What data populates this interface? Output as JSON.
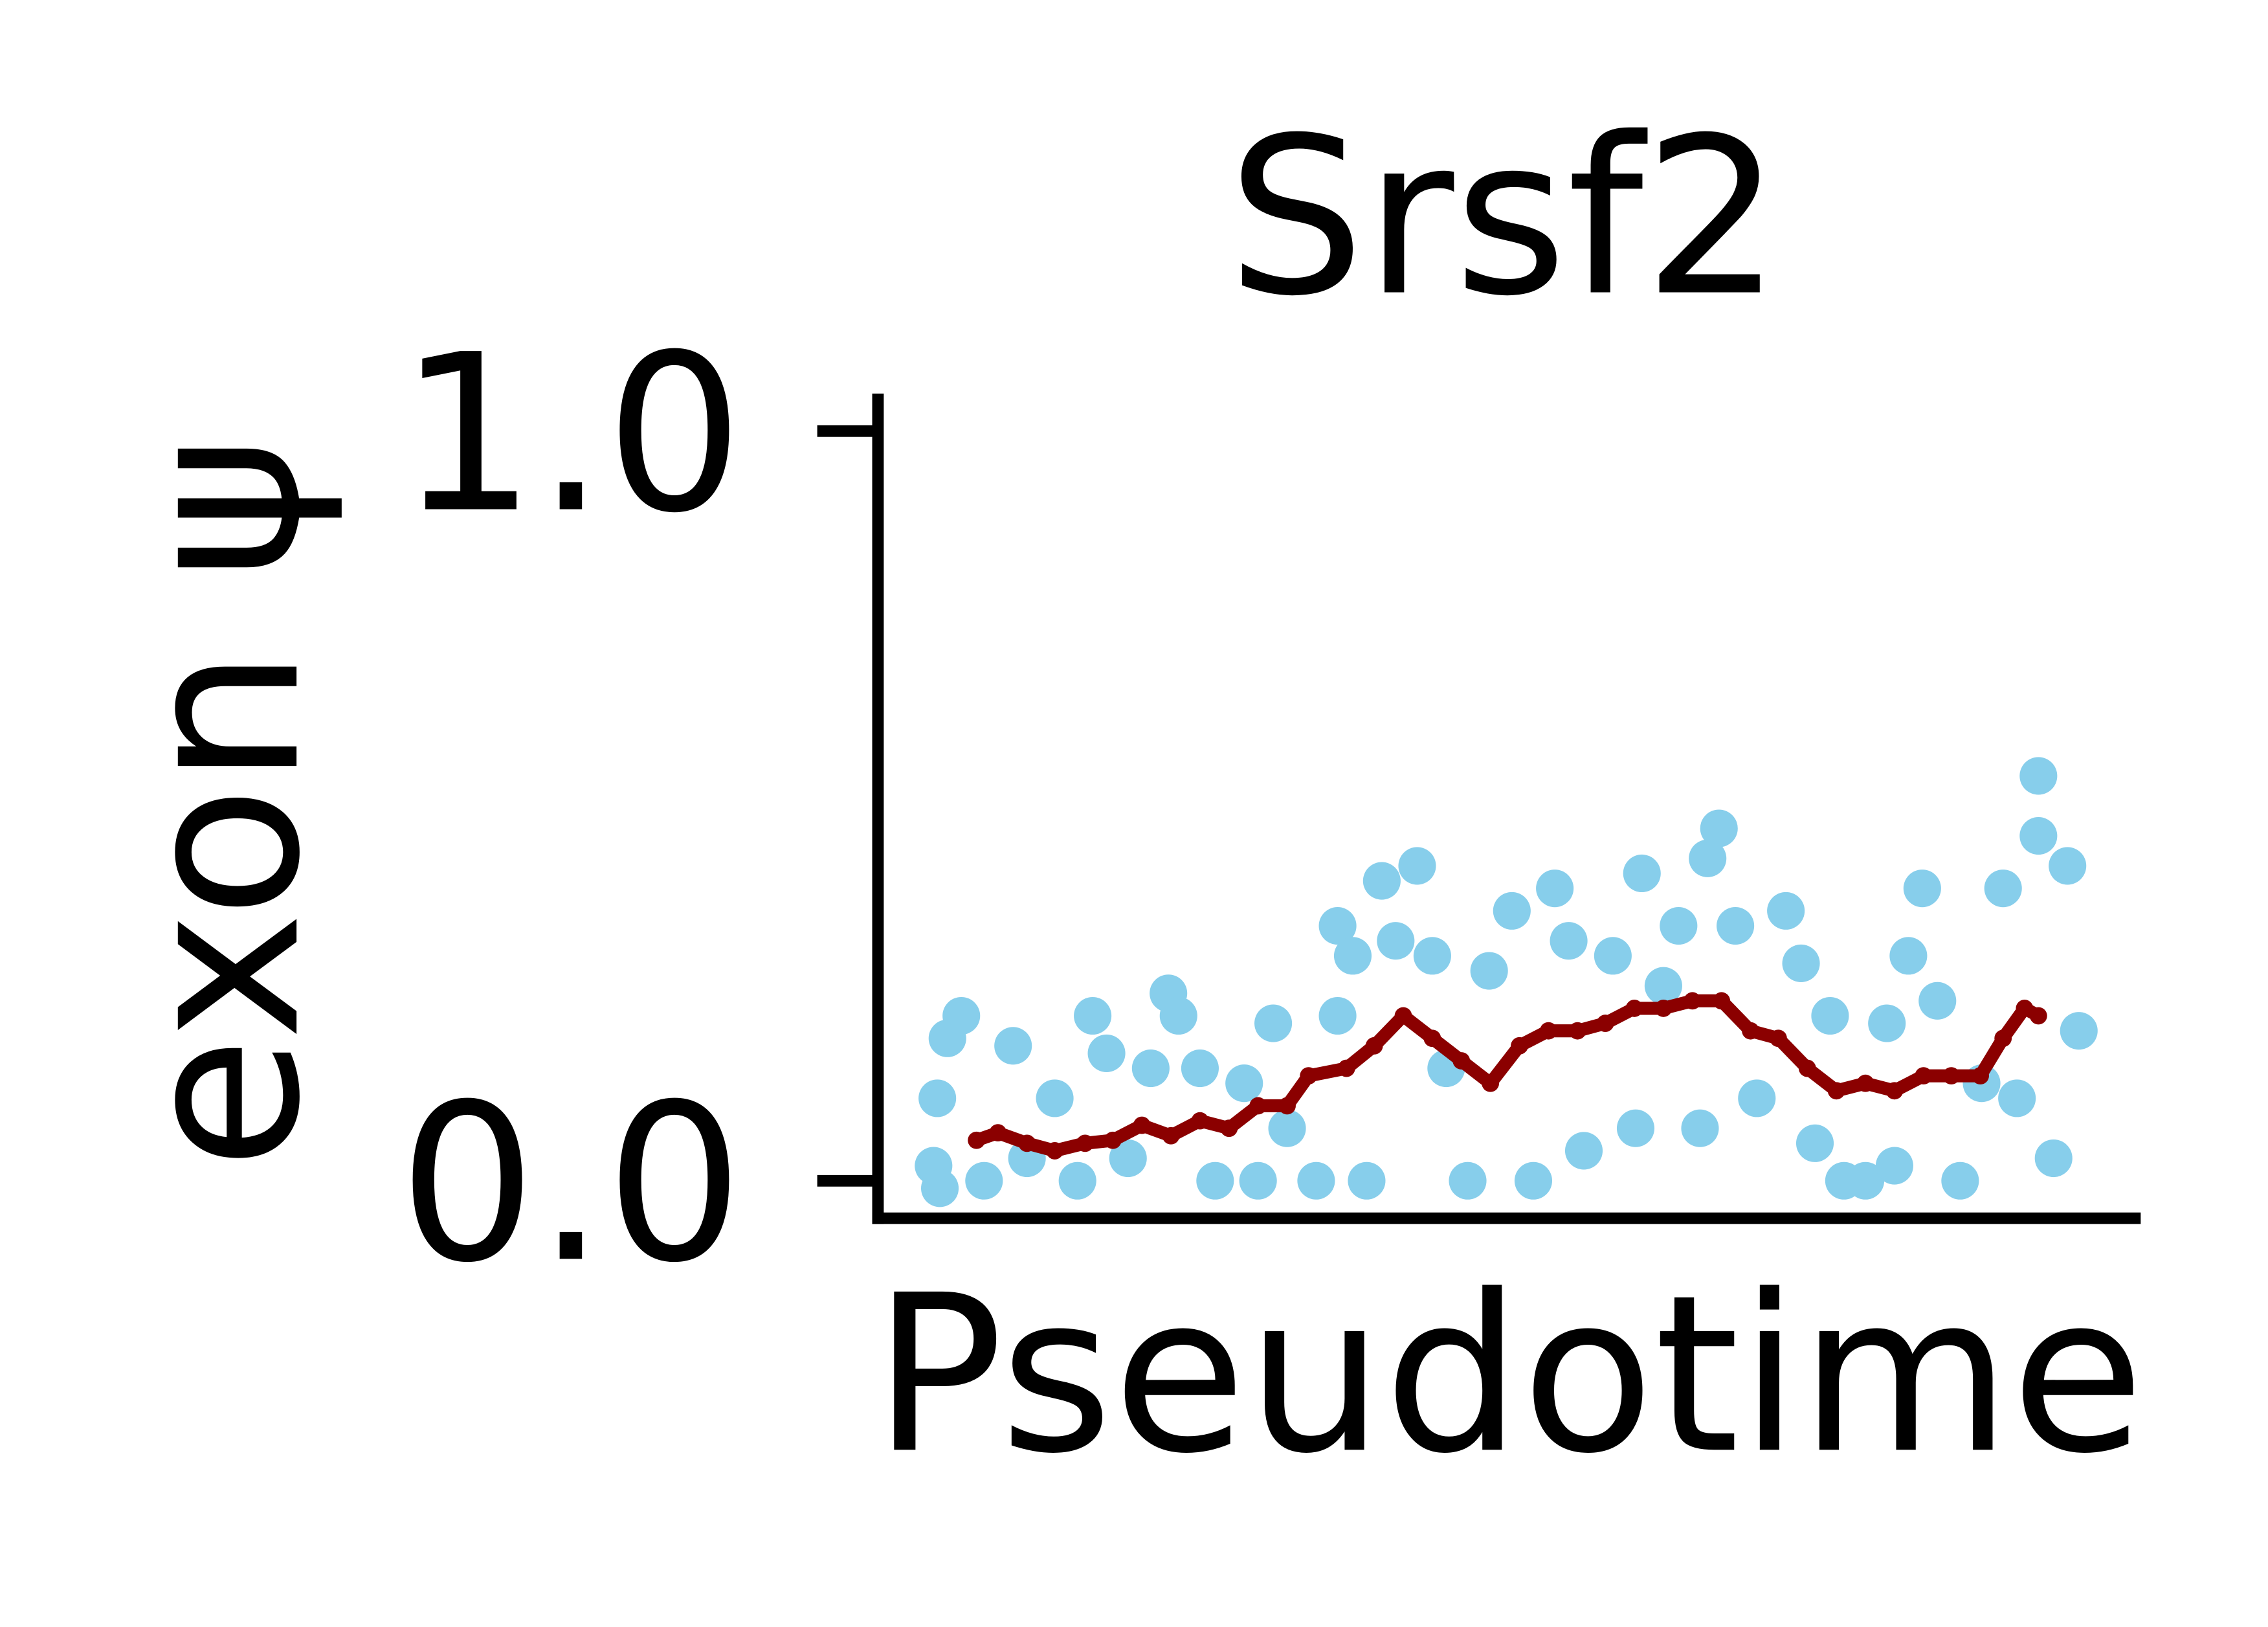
{
  "chart_data": {
    "type": "scatter",
    "title": "Srsf2",
    "x_label": "Pseudotime",
    "y_label": "exon ψ",
    "xlim": [
      0,
      1
    ],
    "ylim": [
      -0.05,
      1.05
    ],
    "yticks": [
      {
        "value": 0,
        "label": "0.0"
      },
      {
        "value": 1,
        "label": "1.0"
      }
    ],
    "series": [
      {
        "type": "scatter",
        "color": "#87ceeb",
        "x": [
          0.044,
          0.049,
          0.047,
          0.055,
          0.066,
          0.084,
          0.107,
          0.118,
          0.14,
          0.158,
          0.17,
          0.181,
          0.198,
          0.216,
          0.23,
          0.238,
          0.255,
          0.267,
          0.29,
          0.301,
          0.313,
          0.324,
          0.347,
          0.364,
          0.364,
          0.376,
          0.387,
          0.399,
          0.41,
          0.427,
          0.439,
          0.45,
          0.467,
          0.484,
          0.502,
          0.519,
          0.536,
          0.547,
          0.559,
          0.582,
          0.6,
          0.605,
          0.622,
          0.634,
          0.651,
          0.657,
          0.666,
          0.679,
          0.696,
          0.719,
          0.731,
          0.742,
          0.754,
          0.765,
          0.782,
          0.799,
          0.805,
          0.816,
          0.827,
          0.839,
          0.857,
          0.874,
          0.891,
          0.902,
          0.919,
          0.919,
          0.931,
          0.942,
          0.951
        ],
        "values": [
          0.02,
          -0.01,
          0.11,
          0.19,
          0.22,
          0.0,
          0.18,
          0.03,
          0.11,
          0.0,
          0.22,
          0.17,
          0.03,
          0.15,
          0.25,
          0.22,
          0.15,
          0.0,
          0.13,
          0.0,
          0.21,
          0.07,
          0.0,
          0.34,
          0.22,
          0.3,
          0.0,
          0.4,
          0.32,
          0.42,
          0.3,
          0.15,
          0.0,
          0.28,
          0.36,
          0.0,
          0.39,
          0.32,
          0.04,
          0.3,
          0.07,
          0.41,
          0.26,
          0.34,
          0.07,
          0.43,
          0.47,
          0.34,
          0.11,
          0.36,
          0.29,
          0.05,
          0.22,
          0.0,
          0.0,
          0.21,
          0.02,
          0.3,
          0.39,
          0.24,
          0.0,
          0.13,
          0.39,
          0.11,
          0.54,
          0.46,
          0.03,
          0.42,
          0.2
        ]
      },
      {
        "type": "line",
        "color": "#8b0000",
        "x": [
          0.078,
          0.095,
          0.118,
          0.14,
          0.164,
          0.186,
          0.209,
          0.232,
          0.255,
          0.278,
          0.301,
          0.324,
          0.341,
          0.371,
          0.393,
          0.416,
          0.439,
          0.462,
          0.485,
          0.508,
          0.531,
          0.554,
          0.576,
          0.599,
          0.622,
          0.645,
          0.668,
          0.691,
          0.713,
          0.736,
          0.759,
          0.782,
          0.805,
          0.828,
          0.85,
          0.873,
          0.891,
          0.908,
          0.919
        ],
        "values": [
          0.054,
          0.064,
          0.05,
          0.04,
          0.05,
          0.054,
          0.074,
          0.06,
          0.08,
          0.07,
          0.1,
          0.1,
          0.14,
          0.15,
          0.18,
          0.22,
          0.19,
          0.16,
          0.13,
          0.18,
          0.2,
          0.2,
          0.21,
          0.23,
          0.23,
          0.24,
          0.24,
          0.2,
          0.19,
          0.15,
          0.12,
          0.13,
          0.12,
          0.14,
          0.14,
          0.14,
          0.19,
          0.23,
          0.22
        ]
      }
    ]
  }
}
